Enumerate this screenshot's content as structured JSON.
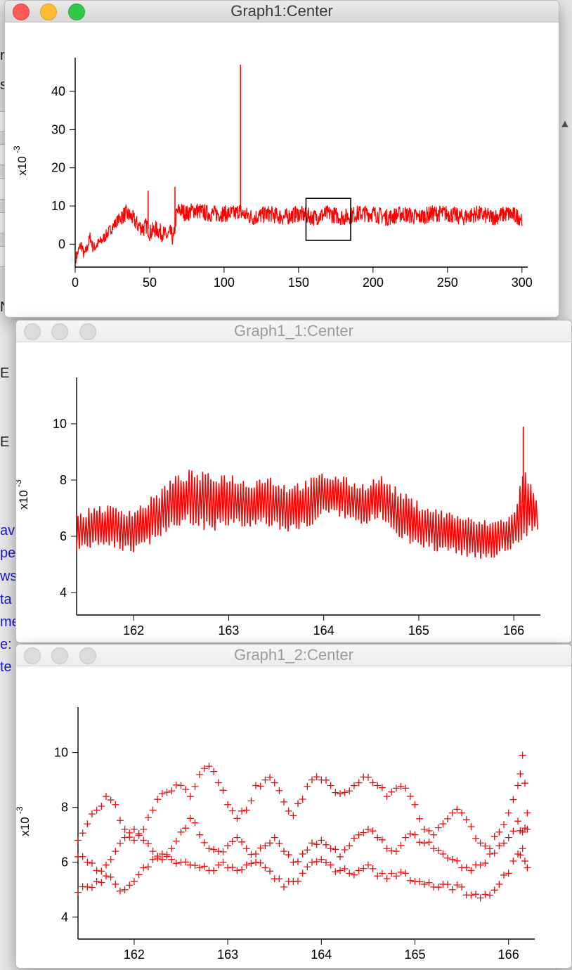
{
  "background": {
    "left_letters": [
      "r",
      "s"
    ],
    "side_letters": [
      "N",
      "E",
      "E"
    ],
    "blue_lines": [
      "ave",
      "pe",
      "ws",
      "ta",
      "me",
      "e:",
      "te"
    ],
    "colors": {
      "link_text": "#1a1acc"
    }
  },
  "windows": [
    {
      "title": "Graph1:Center",
      "active": true,
      "chart_data": {
        "type": "line",
        "title": "",
        "xlabel": "",
        "ylabel": "x10-3",
        "xlim": [
          0,
          302
        ],
        "ylim": [
          -6,
          47
        ],
        "xticks": [
          "0",
          "50",
          "100",
          "150",
          "200",
          "250",
          "300"
        ],
        "yticks": [
          "0",
          "10",
          "20",
          "30",
          "40"
        ],
        "color": "#ff0000",
        "series": [
          {
            "x": [
              0,
              2,
              4,
              6,
              8,
              10,
              12,
              15,
              18,
              22,
              26,
              30,
              34,
              38,
              42,
              46,
              48,
              50,
              54,
              58,
              62,
              64,
              66,
              68,
              70,
              75,
              80,
              90,
              100,
              108,
              110,
              112,
              120,
              130,
              140,
              150,
              160,
              170,
              180,
              190,
              200,
              210,
              220,
              230,
              240,
              250,
              260,
              270,
              280,
              290,
              300
            ],
            "y": [
              -4,
              -2,
              0,
              -3,
              -1,
              2,
              -1,
              0,
              1,
              3,
              5,
              7,
              8,
              7,
              5,
              4,
              5,
              3,
              4,
              3,
              2,
              3,
              1,
              8,
              9,
              8,
              9,
              8,
              8,
              8,
              9,
              8,
              7,
              8,
              7,
              8,
              7,
              8,
              7,
              8,
              8,
              7,
              8,
              7,
              8,
              8,
              7,
              8,
              7,
              8,
              7
            ],
            "spikes": [
              {
                "x": 49,
                "y": 14
              },
              {
                "x": 67,
                "y": 15
              },
              {
                "x": 111,
                "y": 47
              }
            ]
          }
        ],
        "zoom_box": {
          "x": [
            155,
            185
          ],
          "y": [
            1,
            12
          ]
        }
      }
    },
    {
      "title": "Graph1_1:Center",
      "active": false,
      "chart_data": {
        "type": "line",
        "title": "",
        "xlabel": "",
        "ylabel": "x10-3",
        "xlim": [
          161.4,
          166.25
        ],
        "ylim": [
          3.2,
          11.4
        ],
        "xticks": [
          "162",
          "163",
          "164",
          "165",
          "166"
        ],
        "yticks": [
          "4",
          "6",
          "8",
          "10"
        ],
        "color": "#ff0000",
        "series": [
          {
            "x": [
              161.4,
              161.6,
              161.8,
              162.0,
              162.2,
              162.4,
              162.6,
              162.8,
              163.0,
              163.2,
              163.4,
              163.6,
              163.8,
              164.0,
              164.2,
              164.4,
              164.6,
              164.8,
              165.0,
              165.2,
              165.4,
              165.6,
              165.8,
              166.0,
              166.1,
              166.25
            ],
            "y": [
              6.1,
              6.4,
              6.3,
              6.2,
              6.6,
              7.2,
              7.4,
              7.2,
              7.3,
              7.1,
              7.3,
              7.0,
              7.1,
              7.5,
              7.4,
              7.1,
              7.4,
              6.8,
              6.4,
              6.2,
              6.1,
              5.9,
              5.9,
              6.2,
              7.2,
              6.8
            ],
            "amplitude": [
              1.3,
              1.5,
              1.6,
              1.6,
              1.7,
              1.8,
              2.0,
              2.1,
              2.0,
              1.8,
              1.9,
              1.8,
              1.8,
              1.6,
              1.5,
              1.6,
              1.6,
              1.7,
              1.7,
              1.6,
              1.5,
              1.4,
              1.4,
              1.3,
              2.6,
              1.2
            ],
            "spike": {
              "x": 166.1,
              "y": 9.9
            }
          }
        ]
      }
    },
    {
      "title": "Graph1_2:Center",
      "active": false,
      "chart_data": {
        "type": "scatter",
        "marker": "+",
        "title": "",
        "xlabel": "",
        "ylabel": "x10-3",
        "xlim": [
          161.4,
          166.25
        ],
        "ylim": [
          3.2,
          11.4
        ],
        "xticks": [
          "162",
          "163",
          "164",
          "165",
          "166"
        ],
        "yticks": [
          "4",
          "6",
          "8",
          "10"
        ],
        "color": "#e01010",
        "series": [
          {
            "x": [
              161.4,
              161.5,
              161.6,
              161.7,
              161.8,
              161.9,
              162.0,
              162.1,
              162.2,
              162.3,
              162.4,
              162.5,
              162.6,
              162.7,
              162.8,
              162.9,
              163.0,
              163.1,
              163.2,
              163.3,
              163.4,
              163.5,
              163.6,
              163.7,
              163.8,
              163.9,
              164.0,
              164.1,
              164.2,
              164.3,
              164.4,
              164.5,
              164.6,
              164.7,
              164.8,
              164.9,
              165.0,
              165.1,
              165.2,
              165.3,
              165.4,
              165.5,
              165.6,
              165.7,
              165.8,
              165.9,
              166.0,
              166.1,
              166.15,
              166.2
            ],
            "y": [
              6.8,
              7.4,
              7.9,
              8.4,
              8.1,
              7.2,
              6.8,
              7.2,
              7.9,
              8.5,
              8.6,
              8.8,
              8.4,
              9.2,
              9.5,
              8.9,
              8.1,
              7.6,
              7.9,
              8.8,
              9.0,
              8.9,
              8.2,
              7.7,
              8.3,
              9.0,
              9.0,
              8.8,
              8.5,
              8.6,
              8.9,
              9.1,
              8.8,
              8.4,
              8.7,
              8.7,
              8.1,
              7.2,
              7.0,
              7.4,
              7.8,
              7.8,
              7.3,
              6.7,
              6.5,
              7.1,
              7.8,
              8.8,
              9.9,
              7.8
            ],
            "y2": [
              4.9,
              5.1,
              5.3,
              5.5,
              5.2,
              5.0,
              5.3,
              5.8,
              6.1,
              6.3,
              6.1,
              6.0,
              5.9,
              5.8,
              5.7,
              5.9,
              5.8,
              5.7,
              5.9,
              6.0,
              5.8,
              5.4,
              5.1,
              5.3,
              5.6,
              6.0,
              6.1,
              5.9,
              5.7,
              5.6,
              5.7,
              5.9,
              5.5,
              5.4,
              5.5,
              5.6,
              5.3,
              5.2,
              5.1,
              5.2,
              5.0,
              5.1,
              4.8,
              4.7,
              4.8,
              5.2,
              5.6,
              6.3,
              6.5,
              5.8
            ],
            "y3": [
              6.2,
              6.0,
              5.7,
              5.9,
              6.4,
              6.9,
              7.2,
              6.8,
              6.4,
              6.1,
              6.5,
              7.1,
              7.6,
              7.0,
              6.5,
              6.4,
              6.6,
              6.9,
              6.5,
              6.3,
              6.6,
              6.9,
              6.4,
              6.0,
              6.3,
              6.7,
              6.8,
              6.5,
              6.2,
              6.6,
              7.0,
              7.2,
              6.9,
              6.5,
              6.4,
              6.9,
              7.0,
              6.7,
              6.5,
              6.3,
              6.1,
              5.8,
              5.7,
              5.9,
              6.3,
              6.6,
              6.9,
              7.5,
              7.1,
              7.2
            ]
          }
        ]
      }
    }
  ]
}
